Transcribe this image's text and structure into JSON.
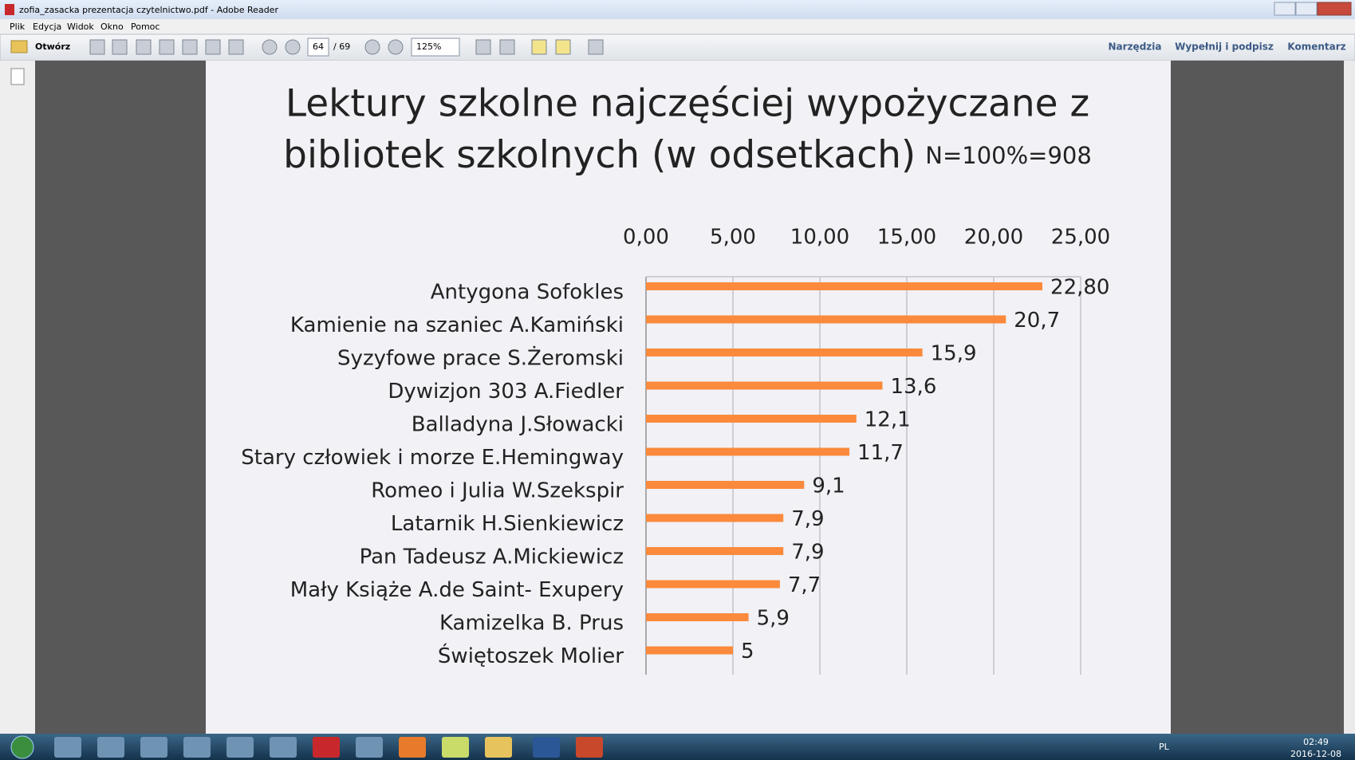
{
  "window": {
    "title": "zofia_zasacka prezentacja czytelnictwo.pdf - Adobe Reader"
  },
  "menu": [
    "Plik",
    "Edycja",
    "Widok",
    "Okno",
    "Pomoc"
  ],
  "toolbar": {
    "open": "Otwórz",
    "page": 64,
    "page_total": "/ 69",
    "zoom": "125%",
    "right": [
      "Narzędzia",
      "Wypełnij i podpisz",
      "Komentarz"
    ]
  },
  "taskbar": {
    "language": "PL",
    "time": "02:49",
    "date": "2016-12-08"
  },
  "chart_data": {
    "type": "bar",
    "orientation": "horizontal",
    "title": "Lektury szkolne najczęściej wypożyczane z bibliotek szkolnych (w odsetkach)",
    "subtitle": "N=100%=908",
    "categories": [
      "Antygona Sofokles",
      "Kamienie na szaniec A.Kamiński",
      "Syzyfowe prace S.Żeromski",
      "Dywizjon 303 A.Fiedler",
      "Balladyna J.Słowacki",
      "Stary człowiek i morze E.Hemingway",
      "Romeo i Julia W.Szekspir",
      "Latarnik H.Sienkiewicz",
      "Pan Tadeusz A.Mickiewicz",
      "Mały Książe A.de Saint- Exupery",
      "Kamizelka B. Prus",
      "Świętoszek Molier"
    ],
    "values": [
      22.8,
      20.7,
      15.9,
      13.6,
      12.1,
      11.7,
      9.1,
      7.9,
      7.9,
      7.7,
      5.9,
      5
    ],
    "value_labels": [
      "22,80",
      "20,7",
      "15,9",
      "13,6",
      "12,1",
      "11,7",
      "9,1",
      "7,9",
      "7,9",
      "7,7",
      "5,9",
      "5"
    ],
    "color": "#fb8a3c",
    "xlim": [
      0,
      25
    ],
    "xticks": [
      {
        "value": 0,
        "label": "0,00"
      },
      {
        "value": 5,
        "label": "5,00"
      },
      {
        "value": 10,
        "label": "10,00"
      },
      {
        "value": 15,
        "label": "15,00"
      },
      {
        "value": 20,
        "label": "20,00"
      },
      {
        "value": 25,
        "label": "25,00"
      }
    ],
    "grid": true
  }
}
